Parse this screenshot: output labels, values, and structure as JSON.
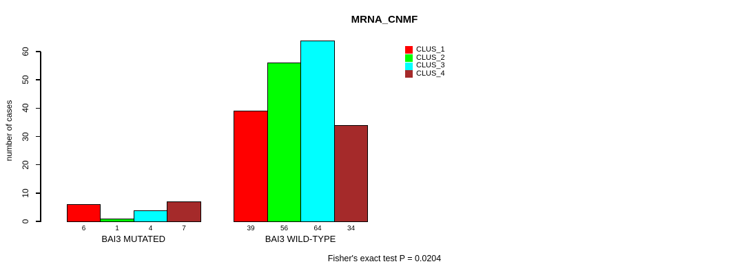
{
  "chart_data": {
    "type": "bar",
    "title": "MRNA_CNMF",
    "ylabel": "number of cases",
    "xlabel": "",
    "ylim": [
      0,
      60
    ],
    "yticks": [
      0,
      10,
      20,
      30,
      40,
      50,
      60
    ],
    "grid": false,
    "legend_position": "top-right",
    "annotation": "Fisher's exact test P = 0.0204",
    "bar_border_color": "#000000",
    "clusters": [
      {
        "name": "CLUS_1",
        "color": "#ff0000"
      },
      {
        "name": "CLUS_2",
        "color": "#00ff00"
      },
      {
        "name": "CLUS_3",
        "color": "#00ffff"
      },
      {
        "name": "CLUS_4",
        "color": "#a52a2a"
      }
    ],
    "categories": [
      "BAI3 MUTATED",
      "BAI3 WILD-TYPE"
    ],
    "series": [
      {
        "name": "CLUS_1",
        "values": [
          6,
          39
        ]
      },
      {
        "name": "CLUS_2",
        "values": [
          1,
          56
        ]
      },
      {
        "name": "CLUS_3",
        "values": [
          4,
          64
        ]
      },
      {
        "name": "CLUS_4",
        "values": [
          7,
          34
        ]
      }
    ],
    "groups": [
      {
        "label": "BAI3 MUTATED",
        "values": [
          6,
          1,
          4,
          7
        ]
      },
      {
        "label": "BAI3 WILD-TYPE",
        "values": [
          39,
          56,
          64,
          34
        ]
      }
    ]
  }
}
